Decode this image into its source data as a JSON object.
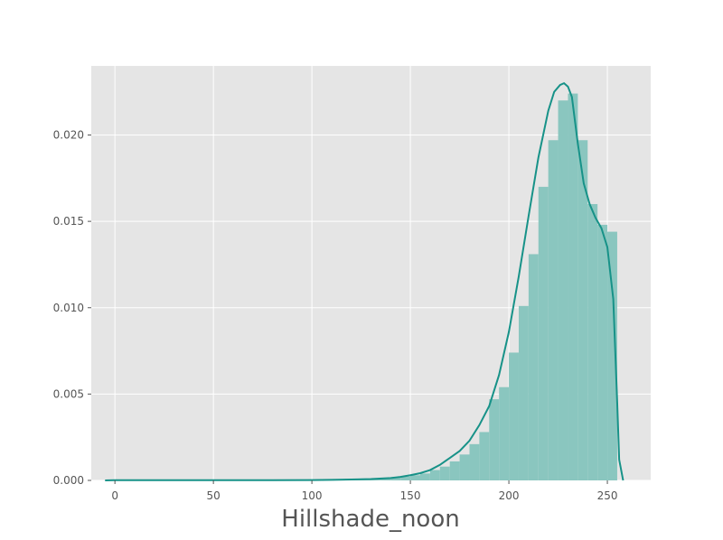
{
  "chart_data": {
    "type": "bar",
    "title": "",
    "xlabel": "Hillshade_noon",
    "ylabel": "",
    "xlim": [
      -12,
      272
    ],
    "ylim": [
      0,
      0.024
    ],
    "grid": true,
    "background_color": "#e5e5e5",
    "grid_color": "#ffffff",
    "bar_color": "#8ac6bf",
    "line_color": "#179288",
    "x_ticks": [
      0,
      50,
      100,
      150,
      200,
      250
    ],
    "y_ticks": [
      0.0,
      0.005,
      0.01,
      0.015,
      0.02
    ],
    "x_tick_labels": [
      "0",
      "50",
      "100",
      "150",
      "200",
      "250"
    ],
    "y_tick_labels": [
      "0.000",
      "0.005",
      "0.010",
      "0.015",
      "0.020"
    ],
    "histogram": {
      "bin_edges": [
        0,
        5,
        10,
        15,
        20,
        25,
        30,
        35,
        40,
        45,
        50,
        55,
        60,
        65,
        70,
        75,
        80,
        85,
        90,
        95,
        100,
        105,
        110,
        115,
        120,
        125,
        130,
        135,
        140,
        145,
        150,
        155,
        160,
        165,
        170,
        175,
        180,
        185,
        190,
        195,
        200,
        205,
        210,
        215,
        220,
        225,
        230,
        235,
        240,
        245,
        250,
        255
      ],
      "values": [
        1e-05,
        1e-05,
        1e-05,
        1e-05,
        1e-05,
        1e-05,
        1e-05,
        1e-05,
        1e-05,
        1e-05,
        1e-05,
        1e-05,
        1e-05,
        1e-05,
        1e-05,
        1e-05,
        1e-05,
        1e-05,
        1e-05,
        1e-05,
        2e-05,
        2e-05,
        3e-05,
        4e-05,
        5e-05,
        6e-05,
        8e-05,
        0.00012,
        0.00016,
        0.00022,
        0.0003,
        0.0004,
        0.0006,
        0.0008,
        0.0011,
        0.0015,
        0.0021,
        0.0028,
        0.0047,
        0.0054,
        0.0074,
        0.0101,
        0.0131,
        0.017,
        0.0197,
        0.022,
        0.0224,
        0.0197,
        0.016,
        0.0148,
        0.0144
      ]
    },
    "density_curve": {
      "x": [
        -5,
        0,
        20,
        40,
        60,
        80,
        100,
        110,
        120,
        130,
        140,
        145,
        150,
        155,
        160,
        165,
        170,
        175,
        180,
        185,
        190,
        195,
        200,
        205,
        210,
        215,
        220,
        223,
        226,
        228,
        230,
        232,
        235,
        238,
        241,
        244,
        247,
        250,
        253,
        255,
        256,
        258
      ],
      "y": [
        0,
        1e-05,
        1e-05,
        1e-05,
        1e-05,
        1e-05,
        2e-05,
        3e-05,
        5e-05,
        8e-05,
        0.00014,
        0.0002,
        0.0003,
        0.00042,
        0.0006,
        0.0009,
        0.0013,
        0.0017,
        0.0023,
        0.0032,
        0.0043,
        0.0061,
        0.0086,
        0.0118,
        0.0153,
        0.0187,
        0.0214,
        0.0225,
        0.0229,
        0.023,
        0.0228,
        0.0222,
        0.0195,
        0.0172,
        0.016,
        0.0152,
        0.0146,
        0.0135,
        0.0105,
        0.0045,
        0.0012,
        0
      ]
    }
  }
}
